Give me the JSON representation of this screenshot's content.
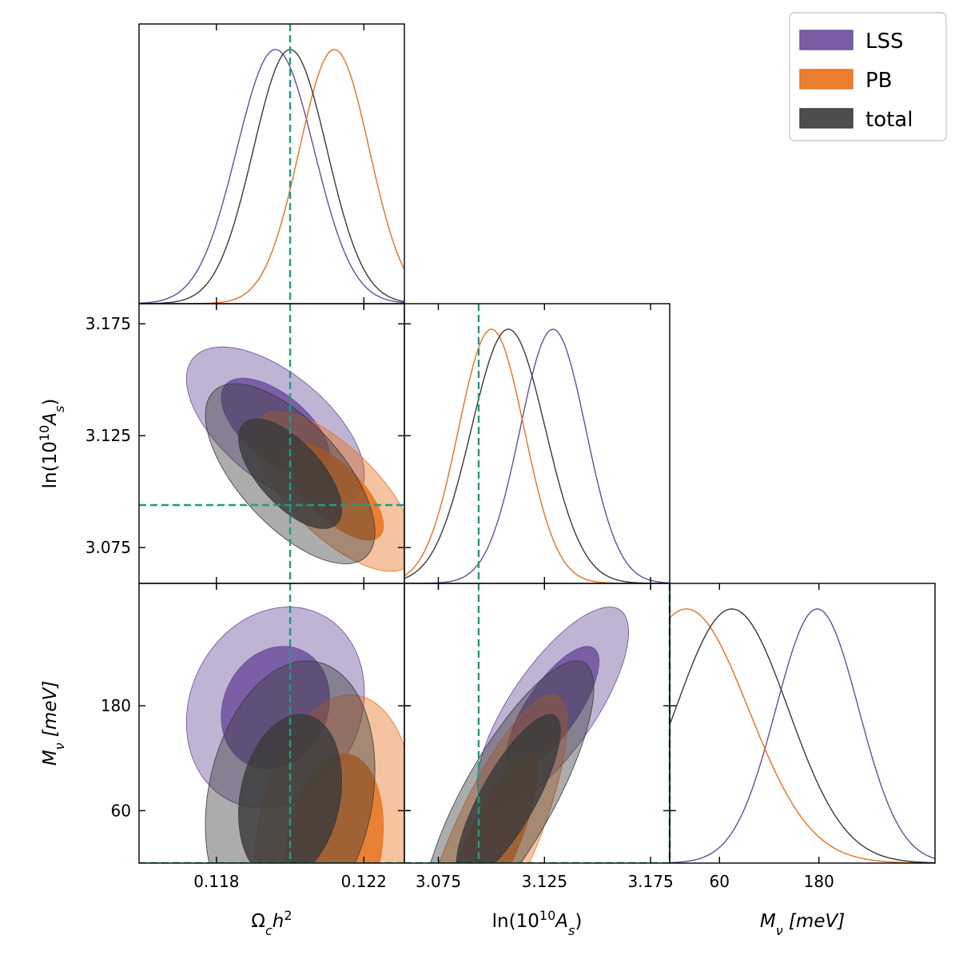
{
  "chart_data": {
    "type": "corner",
    "parameters": [
      {
        "key": "omch2",
        "label": "Ωch²",
        "label_base": "Ω",
        "label_sub": "c",
        "label_rest": "h",
        "label_sup": "2",
        "range": [
          0.1159,
          0.1231
        ],
        "ticks": [
          0.118,
          0.122
        ],
        "tick_labels": [
          "0.118",
          "0.122"
        ],
        "fiducial": 0.12
      },
      {
        "key": "logA",
        "label": "ln(10¹⁰As)",
        "label_pre": "ln(10",
        "label_sup": "10",
        "label_mid": "A",
        "label_sub": "s",
        "label_post": ")",
        "range": [
          3.059,
          3.184
        ],
        "ticks": [
          3.075,
          3.125,
          3.175
        ],
        "tick_labels": [
          "3.075",
          "3.125",
          "3.175"
        ],
        "fiducial": 3.094
      },
      {
        "key": "mnu",
        "label": "Mν [meV]",
        "label_base": "M",
        "label_sub": "ν",
        "label_unit": "[meV]",
        "range": [
          0,
          320
        ],
        "ticks": [
          60,
          180
        ],
        "tick_labels": [
          "60",
          "180"
        ],
        "fiducial": 0
      }
    ],
    "series": [
      {
        "name": "LSS",
        "color": "#6a4c9c",
        "mean": [
          0.1196,
          3.129,
          178
        ],
        "sigma": [
          0.00105,
          0.0155,
          50
        ],
        "corr": {
          "0-1": -0.6,
          "0-2": 0.15,
          "1-2": 0.75
        }
      },
      {
        "name": "PB",
        "color": "#e8711b",
        "mean": [
          0.1212,
          3.1,
          20
        ],
        "sigma": [
          0.00095,
          0.0155,
          75
        ],
        "corr": {
          "0-1": -0.7,
          "0-2": 0.2,
          "1-2": 0.8
        }
      },
      {
        "name": "total",
        "color": "#3a3a3a",
        "mean": [
          0.12,
          3.108,
          75
        ],
        "sigma": [
          0.001,
          0.0175,
          68
        ],
        "corr": {
          "0-1": -0.65,
          "0-2": 0.2,
          "1-2": 0.8
        }
      }
    ],
    "fiducial_color": "#1a9e82",
    "legend": {
      "position": "top-right",
      "entries": [
        "LSS",
        "PB",
        "total"
      ]
    }
  }
}
